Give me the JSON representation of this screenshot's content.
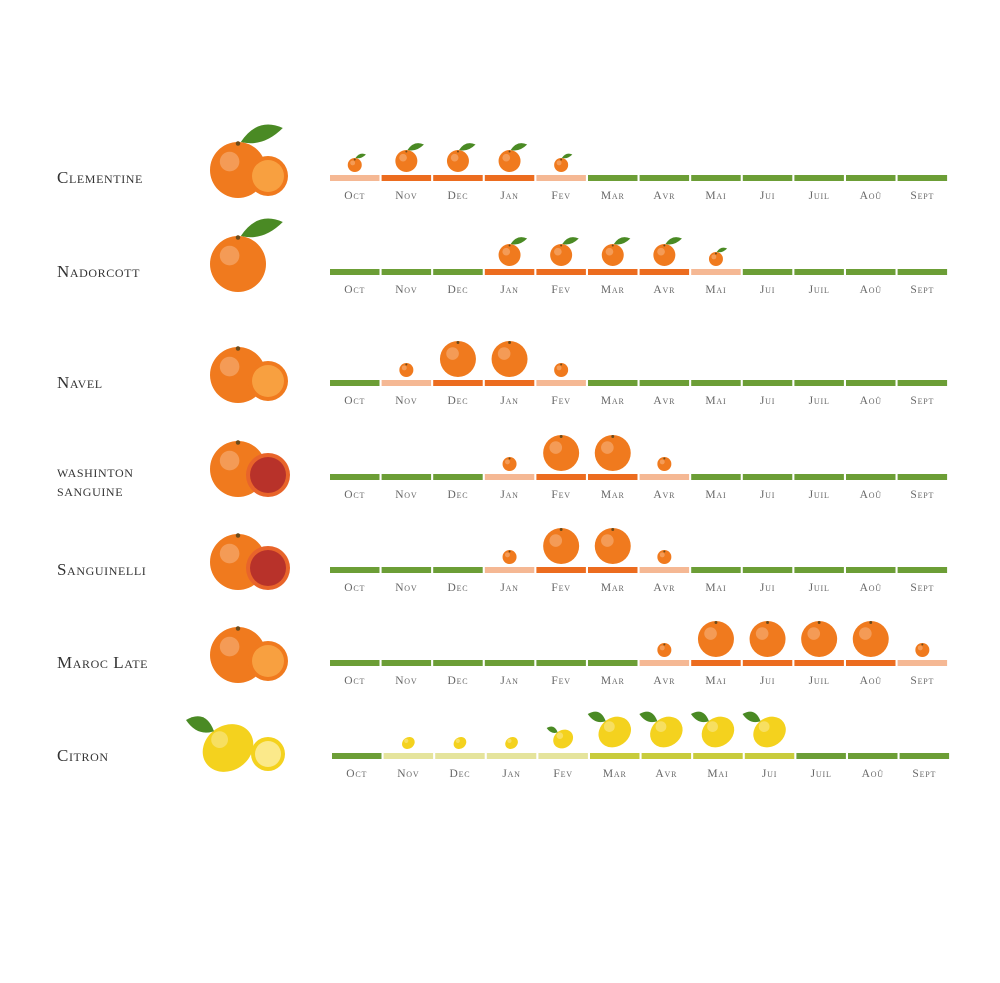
{
  "colors": {
    "off_season": "#6c9e36",
    "citrus_low": "#f5b894",
    "citrus_high": "#ec6c1f",
    "lemon_low": "#e5e49c",
    "lemon_high": "#c8cc3c",
    "orange_fruit": "#f07a1e",
    "lemon_fruit": "#f4d21e",
    "leaf": "#4a8a24"
  },
  "chart_data": {
    "type": "table",
    "months": [
      "Oct",
      "Nov",
      "Dec",
      "Jan",
      "Fev",
      "Mar",
      "Avr",
      "Mai",
      "Jui",
      "Juil",
      "Aoû",
      "Sept"
    ],
    "legend_scale": "0 = off season (green), 1 = low season (light), 2 = peak season (dark)",
    "rows": [
      {
        "name": [
          "Clementine"
        ],
        "kind": "orange",
        "leaf": true,
        "season": [
          1,
          2,
          2,
          2,
          1,
          0,
          0,
          0,
          0,
          0,
          0,
          0
        ],
        "fruit_size": [
          1,
          2,
          2,
          2,
          1,
          0,
          0,
          0,
          0,
          0,
          0,
          0
        ]
      },
      {
        "name": [
          "Nadorcott"
        ],
        "kind": "orange",
        "leaf": true,
        "season": [
          0,
          0,
          0,
          2,
          2,
          2,
          2,
          1,
          0,
          0,
          0,
          0
        ],
        "fruit_size": [
          0,
          0,
          0,
          2,
          2,
          2,
          2,
          1,
          0,
          0,
          0,
          0
        ]
      },
      {
        "name": [
          "Navel"
        ],
        "kind": "orange",
        "leaf": false,
        "season": [
          0,
          1,
          2,
          2,
          1,
          0,
          0,
          0,
          0,
          0,
          0,
          0
        ],
        "fruit_size": [
          0,
          1,
          3,
          3,
          1,
          0,
          0,
          0,
          0,
          0,
          0,
          0
        ]
      },
      {
        "name": [
          "washinton",
          "sanguine"
        ],
        "kind": "orange",
        "leaf": false,
        "season": [
          0,
          0,
          0,
          1,
          2,
          2,
          1,
          0,
          0,
          0,
          0,
          0
        ],
        "fruit_size": [
          0,
          0,
          0,
          1,
          3,
          3,
          1,
          0,
          0,
          0,
          0,
          0
        ]
      },
      {
        "name": [
          "Sanguinelli"
        ],
        "kind": "orange",
        "leaf": false,
        "season": [
          0,
          0,
          0,
          1,
          2,
          2,
          1,
          0,
          0,
          0,
          0,
          0
        ],
        "fruit_size": [
          0,
          0,
          0,
          1,
          3,
          3,
          1,
          0,
          0,
          0,
          0,
          0
        ]
      },
      {
        "name": [
          "Maroc Late"
        ],
        "kind": "orange",
        "leaf": false,
        "season": [
          0,
          0,
          0,
          0,
          0,
          0,
          1,
          2,
          2,
          2,
          2,
          1
        ],
        "fruit_size": [
          0,
          0,
          0,
          0,
          0,
          0,
          1,
          3,
          3,
          3,
          3,
          1
        ]
      },
      {
        "name": [
          "Citron"
        ],
        "kind": "lemon",
        "leaf": true,
        "season": [
          0,
          1,
          1,
          1,
          1,
          2,
          2,
          2,
          2,
          0,
          0,
          0
        ],
        "fruit_size": [
          0,
          1,
          1,
          1,
          2,
          3,
          3,
          3,
          3,
          0,
          0,
          0
        ]
      }
    ]
  }
}
